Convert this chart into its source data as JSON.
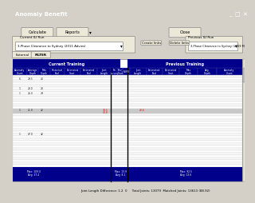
{
  "title_bar": "Anomaly Benefit",
  "bg_color": "#d4d0c8",
  "window_bg": "#ece9d8",
  "toolbar_buttons": [
    "Calculate",
    "Reports",
    "Close"
  ],
  "current_run_label": "Current ILI Run",
  "previous_run_label": "Previous ILI Run",
  "current_run_value": "3-Phase Clearance to Sydney (2011 Advies)",
  "previous_run_value": "3-Phase Clearance to Sydney (2009 Magpies)",
  "table_header_bg": "#00008b",
  "table_header_text": "#ffffff",
  "current_training_cols": [
    "Anomaly Count",
    "Average Depth",
    "Max Depth",
    "Historical End",
    "Estimated Start",
    "Estimated End",
    "Joint Length"
  ],
  "previous_training_cols": [
    "Re-survey",
    "Rev_Start",
    "MLPV",
    "Joint Length",
    "Estimated End",
    "Estimated Start",
    "Max Depth",
    "Avg Depth",
    "Anomaly Count"
  ],
  "row_highlight_bg": "#c0c0c0",
  "row_red_text": "#ff0000",
  "row_blue_section_bg": "#0000aa",
  "footer_bg": "#00008b",
  "footer_text_color": "#ffffff",
  "status_bar_text": "Joint Length Difference: 1.2  0     Total Joints: 13079  Matched Joints: 13613 (88.92)",
  "grid_line_color": "#999999",
  "vertical_separator_color": "#000000",
  "tab_selected": "FILTER",
  "tab_unselected": "External"
}
